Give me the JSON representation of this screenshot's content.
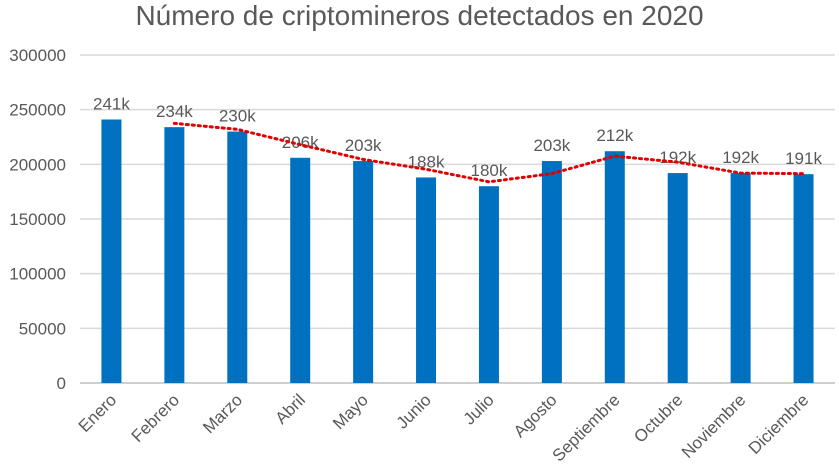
{
  "chart_data": {
    "type": "bar",
    "title": "Número de criptomineros detectados en 2020",
    "xlabel": "",
    "ylabel": "",
    "categories": [
      "Enero",
      "Febrero",
      "Marzo",
      "Abril",
      "Mayo",
      "Junio",
      "Julio",
      "Agosto",
      "Septiembre",
      "Octubre",
      "Noviembre",
      "Diciembre"
    ],
    "values": [
      241000,
      234000,
      230000,
      206000,
      203000,
      188000,
      180000,
      203000,
      212000,
      192000,
      192000,
      191000
    ],
    "data_labels": [
      "241k",
      "234k",
      "230k",
      "206k",
      "203k",
      "188k",
      "180k",
      "203k",
      "212k",
      "192k",
      "192k",
      "191k"
    ],
    "ylim": [
      0,
      300000
    ],
    "yticks": [
      0,
      50000,
      100000,
      150000,
      200000,
      250000,
      300000
    ],
    "grid": true,
    "legend": "none",
    "trendline": {
      "type": "moving average",
      "period": 2,
      "style": "dotted"
    },
    "colors": {
      "bar": "#0070C0",
      "trendline": "#E00000",
      "grid": "#D9D9D9",
      "text": "#595959"
    }
  }
}
